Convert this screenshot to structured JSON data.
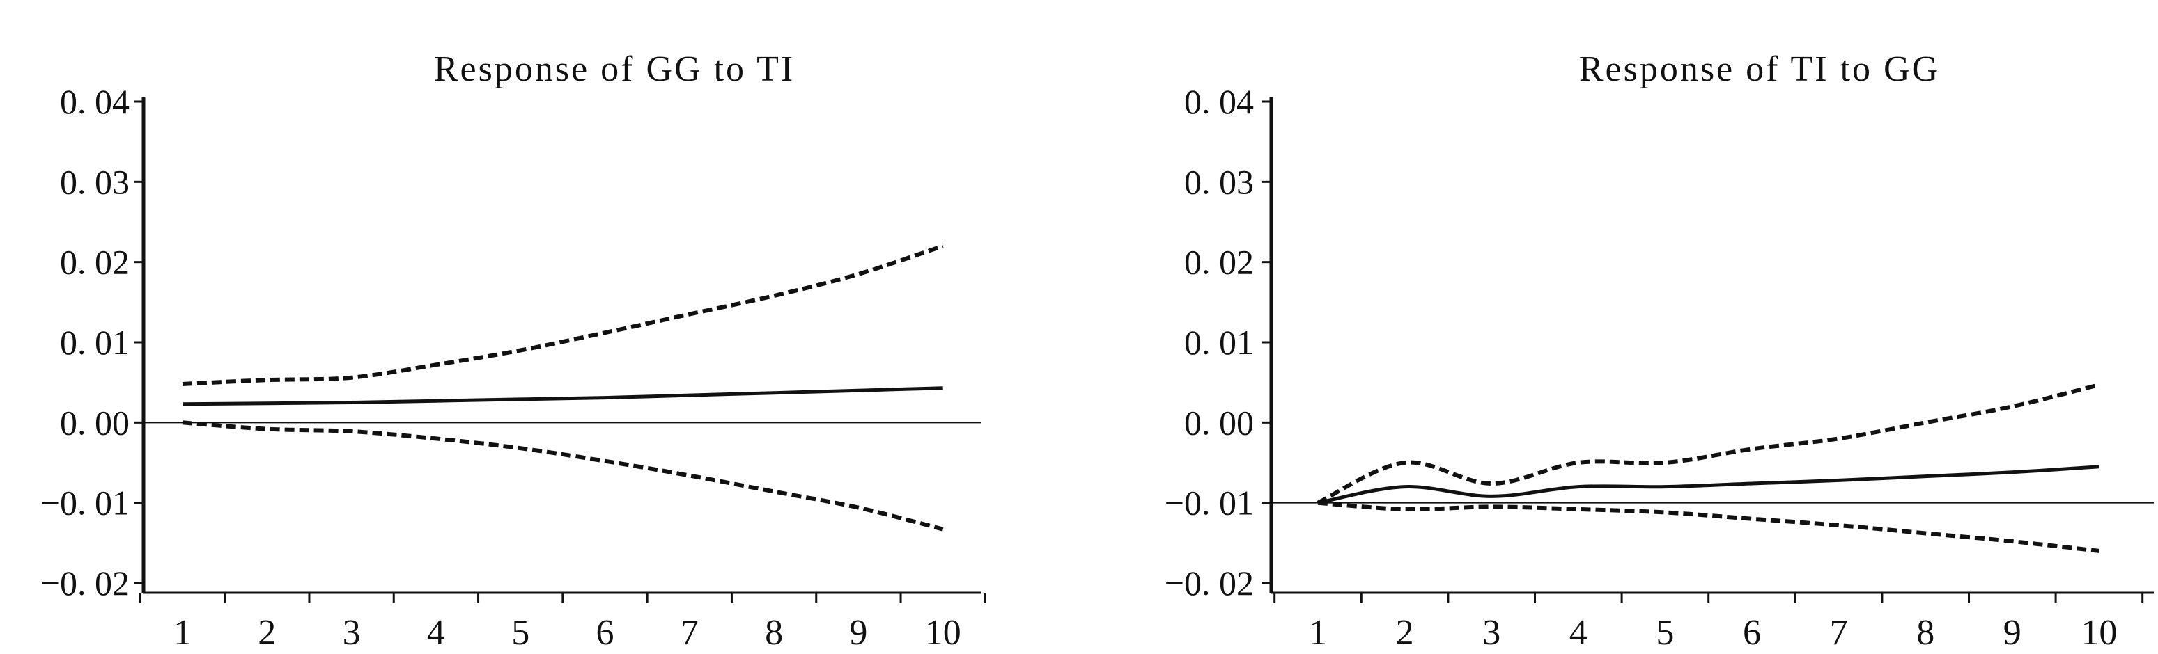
{
  "chart_data": [
    {
      "type": "line",
      "title": "Response of GG to TI",
      "x": [
        1,
        2,
        3,
        4,
        5,
        6,
        7,
        8,
        9,
        10
      ],
      "x_tick_labels": [
        "1",
        "2",
        "3",
        "4",
        "5",
        "6",
        "7",
        "8",
        "9",
        "10"
      ],
      "y_tick_labels": [
        "0. 04",
        "0. 03",
        "0. 02",
        "0. 01",
        "0. 00",
        "−0. 01",
        "−0. 02"
      ],
      "ylim": [
        -0.02,
        0.04
      ],
      "zero_line": 0.0,
      "series": [
        {
          "role": "upper-band",
          "style": "dashed",
          "values": [
            0.0048,
            0.0053,
            0.0056,
            0.0072,
            0.009,
            0.0112,
            0.0135,
            0.0158,
            0.0185,
            0.022
          ]
        },
        {
          "role": "response",
          "style": "solid",
          "values": [
            0.0023,
            0.0024,
            0.0025,
            0.0027,
            0.0029,
            0.0031,
            0.0034,
            0.0037,
            0.004,
            0.0043
          ]
        },
        {
          "role": "lower-band",
          "style": "dashed",
          "values": [
            0.0,
            -0.0008,
            -0.0011,
            -0.002,
            -0.0032,
            -0.0048,
            -0.0066,
            -0.0086,
            -0.0106,
            -0.0133
          ]
        }
      ]
    },
    {
      "type": "line",
      "title": "Response of TI to GG",
      "x": [
        1,
        2,
        3,
        4,
        5,
        6,
        7,
        8,
        9,
        10
      ],
      "x_tick_labels": [
        "1",
        "2",
        "3",
        "4",
        "5",
        "6",
        "7",
        "8",
        "9",
        "10"
      ],
      "y_tick_labels": [
        "0. 04",
        "0. 03",
        "0. 02",
        "0. 01",
        "0. 00",
        "−0. 01",
        "−0. 02"
      ],
      "ylim": [
        -0.02,
        0.04
      ],
      "zero_line": -0.01,
      "series": [
        {
          "role": "upper-band",
          "style": "dashed",
          "values": [
            -0.01,
            -0.005,
            -0.0076,
            -0.005,
            -0.005,
            -0.0033,
            -0.002,
            0.0,
            0.002,
            0.0047
          ]
        },
        {
          "role": "response",
          "style": "solid",
          "values": [
            -0.01,
            -0.008,
            -0.0092,
            -0.008,
            -0.008,
            -0.0076,
            -0.0072,
            -0.0067,
            -0.0062,
            -0.0055
          ]
        },
        {
          "role": "lower-band",
          "style": "dashed",
          "values": [
            -0.01,
            -0.0108,
            -0.0105,
            -0.0108,
            -0.0112,
            -0.012,
            -0.0128,
            -0.0138,
            -0.0148,
            -0.016
          ]
        }
      ]
    }
  ]
}
